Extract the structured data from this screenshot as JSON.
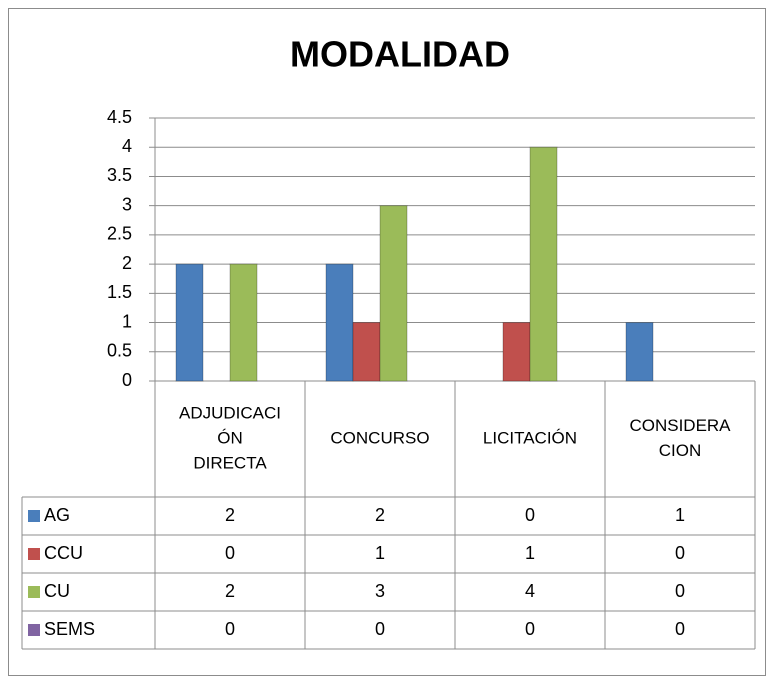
{
  "chart_data": {
    "type": "bar",
    "title": "MODALIDAD",
    "categories": [
      [
        "ADJUDICACI",
        "ÓN",
        "DIRECTA"
      ],
      [
        "CONCURSO"
      ],
      [
        "LICITACIÓN"
      ],
      [
        "CONSIDERA",
        "CION"
      ]
    ],
    "series": [
      {
        "name": "AG",
        "color": "#4a7ebb",
        "values": [
          2,
          2,
          0,
          1
        ]
      },
      {
        "name": "CCU",
        "color": "#c0504d",
        "values": [
          0,
          1,
          1,
          0
        ]
      },
      {
        "name": "CU",
        "color": "#9bbb59",
        "values": [
          2,
          3,
          4,
          0
        ]
      },
      {
        "name": "SEMS",
        "color": "#8064a2",
        "values": [
          0,
          0,
          0,
          0
        ]
      }
    ],
    "ylim": [
      0,
      4.5
    ],
    "yticks": [
      0,
      0.5,
      1,
      1.5,
      2,
      2.5,
      3,
      3.5,
      4,
      4.5
    ],
    "grid": true
  }
}
